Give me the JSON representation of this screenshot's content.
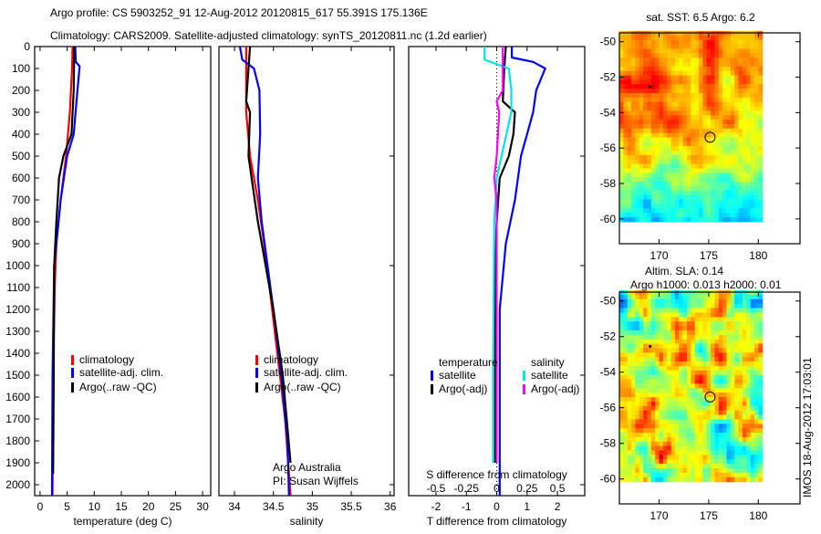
{
  "title_line1": "Argo profile: CS 5903252_91 12-Aug-2012 20120815_617 55.391S 175.136E",
  "title_line2": "Climatology: CARS2009. Satellite-adjusted climatology: synTS_20120811.nc (1.2d earlier)",
  "side_stamp": "IMOS 18-Aug-2012 17:03:01",
  "colors": {
    "climatology": "#ff0000",
    "satellite": "#0000ff",
    "argo": "#000000",
    "s_satellite": "#00e5e5",
    "s_argo": "#ff00ff"
  },
  "chart_data": [
    {
      "type": "line",
      "id": "temperature",
      "xlabel": "temperature (deg C)",
      "ylabel": "",
      "xlim": [
        -1,
        31.5
      ],
      "ylim": [
        2050,
        0
      ],
      "xticks": [
        0,
        5,
        10,
        15,
        20,
        25,
        30
      ],
      "yticks": [
        0,
        100,
        200,
        300,
        400,
        500,
        600,
        700,
        800,
        900,
        1000,
        1100,
        1200,
        1300,
        1400,
        1500,
        1600,
        1700,
        1800,
        1900,
        2000
      ],
      "legend": [
        "climatology",
        "satellite-adj. clim.",
        "Argo(..raw -QC)"
      ],
      "legend_position": "lower-center",
      "series": [
        {
          "name": "climatology",
          "color": "#ff0000",
          "points": [
            [
              6.0,
              0
            ],
            [
              5.9,
              100
            ],
            [
              5.5,
              300
            ],
            [
              4.8,
              500
            ],
            [
              3.8,
              700
            ],
            [
              3.0,
              900
            ],
            [
              2.7,
              1100
            ],
            [
              2.4,
              1500
            ],
            [
              2.3,
              2050
            ]
          ]
        },
        {
          "name": "satellite-adj. clim.",
          "color": "#0000ff",
          "points": [
            [
              6.5,
              0
            ],
            [
              6.6,
              70
            ],
            [
              7.3,
              90
            ],
            [
              6.9,
              200
            ],
            [
              6.2,
              400
            ],
            [
              5.0,
              500
            ],
            [
              3.8,
              700
            ],
            [
              2.6,
              1000
            ],
            [
              2.3,
              1500
            ],
            [
              2.2,
              2050
            ]
          ]
        },
        {
          "name": "Argo(..raw -QC)",
          "color": "#000000",
          "points": [
            [
              6.3,
              0
            ],
            [
              6.2,
              200
            ],
            [
              5.8,
              400
            ],
            [
              4.3,
              500
            ],
            [
              3.5,
              600
            ],
            [
              3.0,
              800
            ],
            [
              2.6,
              1000
            ],
            [
              2.5,
              1600
            ],
            [
              2.4,
              1950
            ]
          ]
        }
      ]
    },
    {
      "type": "line",
      "id": "salinity",
      "xlabel": "salinity",
      "ylabel": "",
      "xlim": [
        33.8,
        36.05
      ],
      "ylim": [
        2050,
        0
      ],
      "xticks": [
        34,
        34.5,
        35,
        35.5,
        36
      ],
      "yticks": [],
      "legend": [
        "climatology",
        "satellite-adj. clim.",
        "Argo(..raw -QC)"
      ],
      "legend_position": "lower-center",
      "annotation": [
        "Argo Australia",
        "PI: Susan Wijffels"
      ],
      "series": [
        {
          "name": "climatology",
          "color": "#ff0000",
          "points": [
            [
              34.15,
              0
            ],
            [
              34.15,
              300
            ],
            [
              34.2,
              500
            ],
            [
              34.3,
              700
            ],
            [
              34.38,
              900
            ],
            [
              34.45,
              1100
            ],
            [
              34.55,
              1400
            ],
            [
              34.65,
              1700
            ],
            [
              34.72,
              2050
            ]
          ]
        },
        {
          "name": "satellite-adj. clim.",
          "color": "#0000ff",
          "points": [
            [
              34.07,
              0
            ],
            [
              34.1,
              60
            ],
            [
              34.25,
              100
            ],
            [
              34.32,
              200
            ],
            [
              34.33,
              400
            ],
            [
              34.3,
              600
            ],
            [
              34.35,
              800
            ],
            [
              34.5,
              1200
            ],
            [
              34.6,
              1500
            ],
            [
              34.68,
              1800
            ],
            [
              34.7,
              2050
            ]
          ]
        },
        {
          "name": "Argo(..raw -QC)",
          "color": "#000000",
          "points": [
            [
              34.2,
              0
            ],
            [
              34.15,
              250
            ],
            [
              34.2,
              300
            ],
            [
              34.18,
              500
            ],
            [
              34.22,
              600
            ],
            [
              34.3,
              800
            ],
            [
              34.5,
              1200
            ],
            [
              34.62,
              1500
            ],
            [
              34.72,
              1900
            ]
          ]
        }
      ]
    },
    {
      "type": "line",
      "id": "difference",
      "xlabel": "T difference from climatology",
      "x2label": "S difference from climatology",
      "xlim": [
        -2.9,
        2.9
      ],
      "x2lim": [
        -0.725,
        0.725
      ],
      "ylim": [
        2050,
        0
      ],
      "xticks": [
        -2,
        -1,
        0,
        1,
        2
      ],
      "x2ticks": [
        "-0.5",
        "-0.25",
        "0",
        "0.25",
        "0.5"
      ],
      "x2tick_values": [
        -0.5,
        -0.25,
        0,
        0.25,
        0.5
      ],
      "legend_headers": [
        "temperature",
        "salinity"
      ],
      "legend": [
        "satellite",
        "Argo(-adj)",
        "satellite",
        "Argo(-adj)"
      ],
      "legend_position": "lower-center",
      "series": [
        {
          "name": "T satellite",
          "axis": "T",
          "color": "#0000ff",
          "points": [
            [
              0.5,
              0
            ],
            [
              0.5,
              50
            ],
            [
              1.2,
              70
            ],
            [
              1.6,
              100
            ],
            [
              1.3,
              200
            ],
            [
              1.2,
              300
            ],
            [
              1.0,
              400
            ],
            [
              0.8,
              500
            ],
            [
              0.6,
              700
            ],
            [
              0.3,
              900
            ],
            [
              0.1,
              1200
            ],
            [
              0.1,
              2050
            ]
          ]
        },
        {
          "name": "T Argo(-adj)",
          "axis": "T",
          "color": "#000000",
          "points": [
            [
              0.3,
              0
            ],
            [
              0.25,
              100
            ],
            [
              0.2,
              250
            ],
            [
              0.6,
              300
            ],
            [
              0.55,
              400
            ],
            [
              0.4,
              500
            ],
            [
              0.1,
              600
            ],
            [
              0.0,
              800
            ],
            [
              -0.05,
              1000
            ],
            [
              -0.05,
              1900
            ]
          ]
        },
        {
          "name": "S satellite",
          "axis": "S",
          "color": "#00e5e5",
          "points": [
            [
              -0.1,
              0
            ],
            [
              -0.1,
              60
            ],
            [
              0.0,
              80
            ],
            [
              0.1,
              100
            ],
            [
              0.12,
              200
            ],
            [
              0.12,
              300
            ],
            [
              0.08,
              400
            ],
            [
              0.0,
              600
            ],
            [
              -0.02,
              800
            ],
            [
              -0.03,
              1500
            ],
            [
              -0.03,
              1900
            ]
          ]
        },
        {
          "name": "S Argo(-adj)",
          "axis": "S",
          "color": "#ff00ff",
          "points": [
            [
              0.05,
              0
            ],
            [
              0.05,
              200
            ],
            [
              0.0,
              250
            ],
            [
              0.02,
              300
            ],
            [
              0.0,
              500
            ],
            [
              -0.02,
              600
            ],
            [
              0.0,
              700
            ],
            [
              0.0,
              1000
            ],
            [
              0.0,
              1900
            ]
          ]
        }
      ]
    },
    {
      "type": "heatmap",
      "id": "sst-map",
      "title": "sat. SST: 6.5 Argo: 6.2",
      "xlim": [
        166,
        184.2
      ],
      "ylim": [
        -61.4,
        -49.5
      ],
      "xticks": [
        170,
        175,
        180
      ],
      "yticks": [
        -50,
        -52,
        -54,
        -56,
        -58,
        -60
      ],
      "profile_location": [
        175.136,
        -55.391
      ]
    },
    {
      "type": "heatmap",
      "id": "sla-map",
      "title": "Altim. SLA: 0.14",
      "subtitle": "Argo h1000: 0.013 h2000: 0.01",
      "xlim": [
        166,
        184.2
      ],
      "ylim": [
        -61.4,
        -49.5
      ],
      "xticks": [
        170,
        175,
        180
      ],
      "yticks": [
        -50,
        -52,
        -54,
        -56,
        -58,
        -60
      ],
      "profile_location": [
        175.136,
        -55.391
      ]
    }
  ]
}
